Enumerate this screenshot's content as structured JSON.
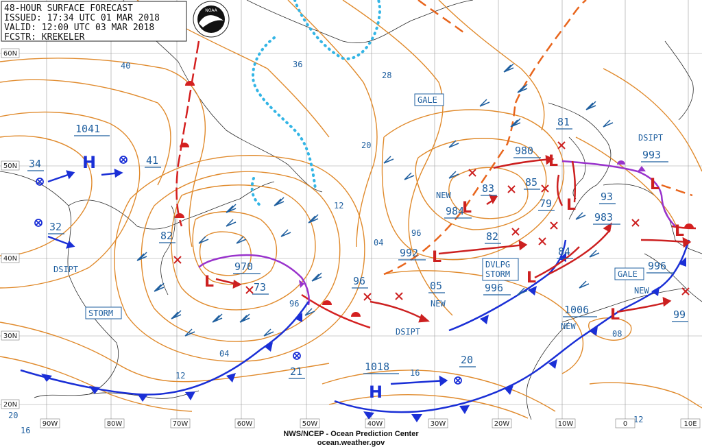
{
  "header": {
    "line1": "48-HOUR SURFACE FORECAST",
    "line2": "ISSUED: 17:34 UTC 01 MAR 2018",
    "line3": "VALID:  12:00 UTC 03 MAR 2018",
    "line4": "FCSTR: KREKELER"
  },
  "logo": {
    "text": "NOAA"
  },
  "footer": {
    "line1": "NWS/NCEP - Ocean Prediction Center",
    "line2": "ocean.weather.gov"
  },
  "axes": {
    "lon": [
      "90W",
      "80W",
      "70W",
      "60W",
      "50W",
      "40W",
      "30W",
      "20W",
      "10W",
      "0",
      "10E"
    ],
    "lat": [
      "60N",
      "50N",
      "40N",
      "30N",
      "20N"
    ]
  },
  "pressure_centers": [
    {
      "type": "H",
      "value": "1041"
    },
    {
      "type": "H",
      "value": "1018"
    },
    {
      "type": "L",
      "value": "970"
    },
    {
      "type": "L",
      "value": "980"
    },
    {
      "type": "L",
      "value": "984"
    },
    {
      "type": "L",
      "value": "992"
    },
    {
      "type": "L",
      "value": "996"
    },
    {
      "type": "L",
      "value": "1006"
    },
    {
      "type": "L",
      "value": "983"
    },
    {
      "type": "L",
      "value": "993"
    },
    {
      "type": "L",
      "value": "996"
    }
  ],
  "labels": {
    "l34": "34",
    "l32": "32",
    "l41": "41",
    "l82": "82",
    "l73": "73",
    "l96": "96",
    "l05": "05",
    "l21": "21",
    "l20": "20",
    "l83": "83",
    "l85": "85",
    "l79": "79",
    "l93": "93",
    "l84": "84",
    "l81": "81",
    "l99": "99",
    "l82b": "82"
  },
  "isobar_values": {
    "i40": "40",
    "i36": "36",
    "i28": "28",
    "i20": "20",
    "i12": "12",
    "i04": "04",
    "i96": "96",
    "i96b": "96",
    "i04b": "04",
    "i12b": "12",
    "i16": "16",
    "i16b": "16",
    "i20b": "20",
    "i08": "08",
    "i12c": "12"
  },
  "boxes": {
    "storm": "STORM",
    "gale1": "GALE",
    "gale2": "GALE",
    "dvlpg1": "DVLPG",
    "dvlpg2": "STORM"
  },
  "annotations": {
    "dsipt1": "DSIPT",
    "dsipt2": "DSIPT",
    "dsipt3": "DSIPT",
    "new1": "NEW",
    "new2": "NEW",
    "new3": "NEW",
    "new4": "NEW"
  },
  "colors": {
    "isobar": "#e08a2c",
    "label_blue": "#1f5f9f",
    "cold_front": "#1a2fd6",
    "warm_front": "#d42020",
    "occluded_front": "#9933cc",
    "track_red": "#cc2020",
    "ice_edge": "#33b5e5"
  }
}
